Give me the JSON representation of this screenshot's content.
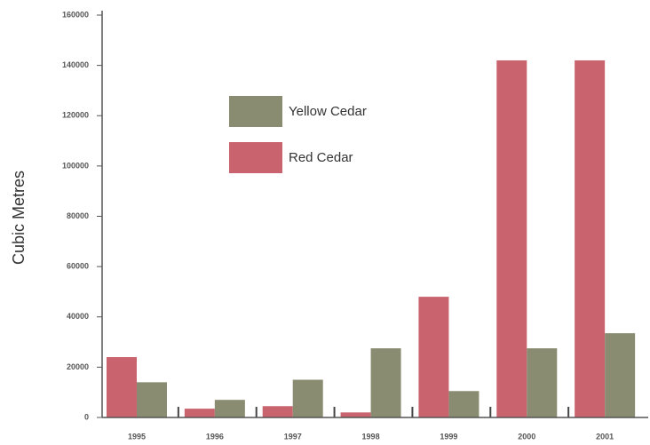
{
  "chart_data": {
    "type": "bar",
    "y_label": "Cubic Metres",
    "categories": [
      "1995",
      "1996",
      "1997",
      "1998",
      "1999",
      "2000",
      "2001"
    ],
    "series": [
      {
        "name": "Red Cedar",
        "color": "#c9636e",
        "values": [
          24000,
          3500,
          4500,
          2000,
          48000,
          142000,
          142000
        ]
      },
      {
        "name": "Yellow Cedar",
        "color": "#8a8c72",
        "values": [
          14000,
          7000,
          15000,
          27500,
          10500,
          27500,
          33500
        ]
      }
    ],
    "ylim": [
      0,
      160000
    ],
    "yticks": [
      0,
      20000,
      40000,
      60000,
      80000,
      100000,
      120000,
      140000,
      160000
    ],
    "legend": "upper left"
  }
}
